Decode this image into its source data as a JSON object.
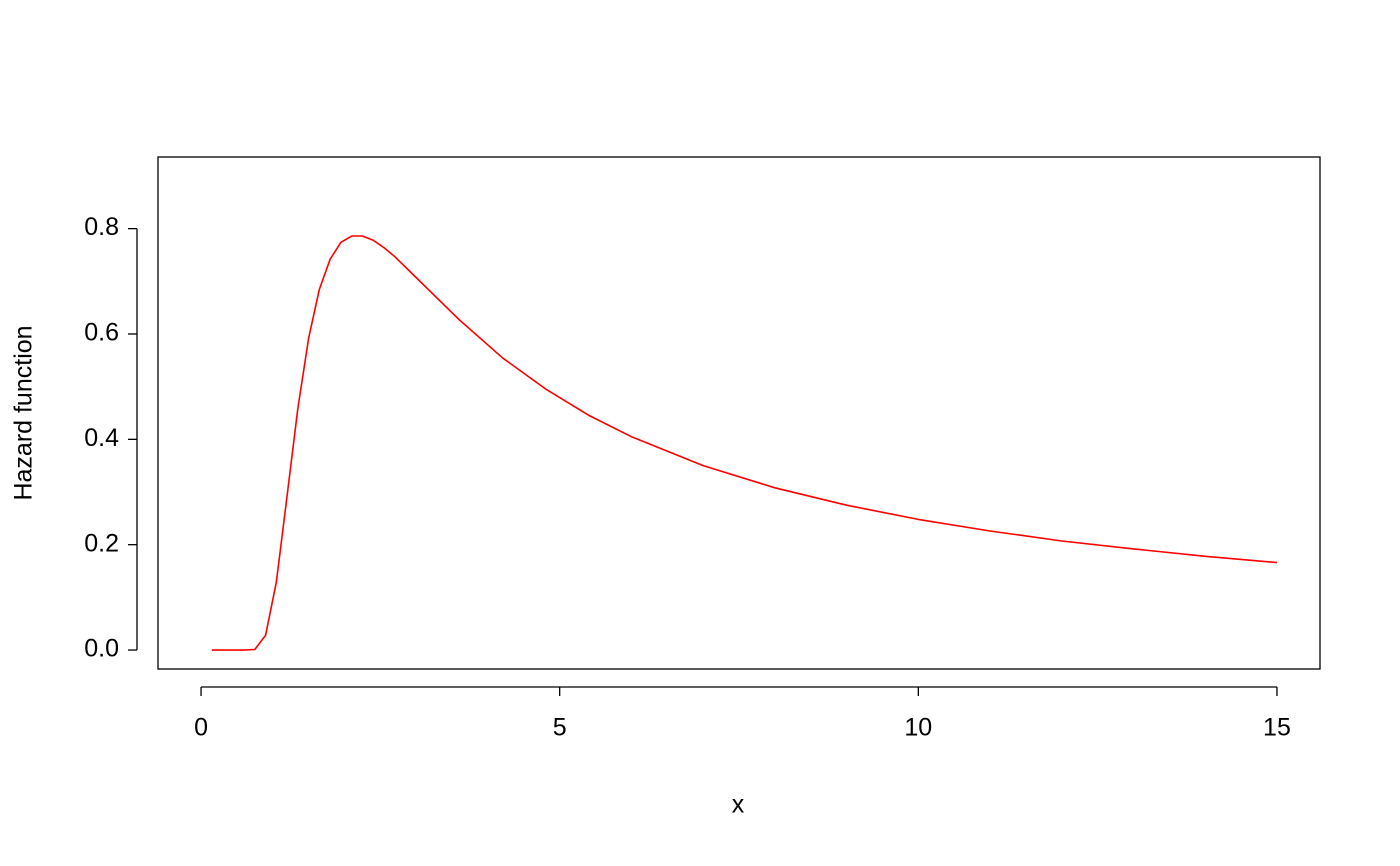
{
  "chart_data": {
    "type": "line",
    "x_label": "x",
    "y_label": "Hazard function",
    "x": [
      0.15,
      0.3,
      0.45,
      0.6,
      0.75,
      0.9,
      1.05,
      1.2,
      1.35,
      1.5,
      1.65,
      1.8,
      1.95,
      2.1,
      2.25,
      2.4,
      2.55,
      2.7,
      3.0,
      3.6,
      4.2,
      4.8,
      5.4,
      6,
      7,
      8,
      9,
      10,
      11,
      12,
      13,
      14,
      15
    ],
    "series": [
      {
        "color": "#ff0000",
        "values": [
          0,
          0,
          0,
          0,
          0.001,
          0.028,
          0.129,
          0.293,
          0.459,
          0.592,
          0.685,
          0.742,
          0.774,
          0.786,
          0.786,
          0.778,
          0.764,
          0.747,
          0.707,
          0.627,
          0.555,
          0.496,
          0.446,
          0.405,
          0.35,
          0.308,
          0.275,
          0.248,
          0.226,
          0.207,
          0.192,
          0.178,
          0.166
        ]
      }
    ],
    "xlim": [
      -0.6,
      15.6
    ],
    "ylim": [
      -0.036,
      0.936
    ],
    "xticks": [
      0,
      5,
      10,
      15
    ],
    "yticks": [
      {
        "value": 0,
        "label": "0.0"
      },
      0.2,
      0.4,
      0.6,
      0.8
    ],
    "grid": false
  }
}
